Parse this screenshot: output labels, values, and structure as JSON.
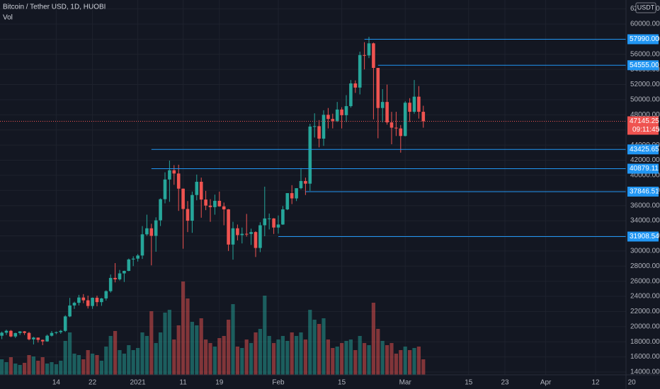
{
  "chart_data": {
    "type": "candlestick",
    "title": "Bitcoin / Tether USD, 1D, HUOBI",
    "volume_title": "Vol",
    "currency": "USDT",
    "up_color": "#26a69a",
    "down_color": "#ef5350",
    "level_color": "#2196f3",
    "grid": true,
    "categories": [
      "2020-12-02",
      "2020-12-03",
      "2020-12-04",
      "2020-12-05",
      "2020-12-06",
      "2020-12-07",
      "2020-12-08",
      "2020-12-09",
      "2020-12-10",
      "2020-12-11",
      "2020-12-12",
      "2020-12-13",
      "2020-12-14",
      "2020-12-15",
      "2020-12-16",
      "2020-12-17",
      "2020-12-18",
      "2020-12-19",
      "2020-12-20",
      "2020-12-21",
      "2020-12-22",
      "2020-12-23",
      "2020-12-24",
      "2020-12-25",
      "2020-12-26",
      "2020-12-27",
      "2020-12-28",
      "2020-12-29",
      "2020-12-30",
      "2020-12-31",
      "2021-01-01",
      "2021-01-02",
      "2021-01-03",
      "2021-01-04",
      "2021-01-05",
      "2021-01-06",
      "2021-01-07",
      "2021-01-08",
      "2021-01-09",
      "2021-01-10",
      "2021-01-11",
      "2021-01-12",
      "2021-01-13",
      "2021-01-14",
      "2021-01-15",
      "2021-01-16",
      "2021-01-17",
      "2021-01-18",
      "2021-01-19",
      "2021-01-20",
      "2021-01-21",
      "2021-01-22",
      "2021-01-23",
      "2021-01-24",
      "2021-01-25",
      "2021-01-26",
      "2021-01-27",
      "2021-01-28",
      "2021-01-29",
      "2021-01-30",
      "2021-01-31",
      "2021-02-01",
      "2021-02-02",
      "2021-02-03",
      "2021-02-04",
      "2021-02-05",
      "2021-02-06",
      "2021-02-07",
      "2021-02-08",
      "2021-02-09",
      "2021-02-10",
      "2021-02-11",
      "2021-02-12",
      "2021-02-13",
      "2021-02-14",
      "2021-02-15",
      "2021-02-16",
      "2021-02-17",
      "2021-02-18",
      "2021-02-19",
      "2021-02-20",
      "2021-02-21",
      "2021-02-22",
      "2021-02-23",
      "2021-02-24",
      "2021-02-25",
      "2021-02-26",
      "2021-02-27",
      "2021-02-28",
      "2021-03-01",
      "2021-03-02",
      "2021-03-03",
      "2021-03-04",
      "2021-03-05"
    ],
    "open": [
      18800,
      19200,
      19450,
      18700,
      19150,
      19370,
      19170,
      18320,
      18550,
      18250,
      18050,
      18800,
      19170,
      19270,
      19440,
      21350,
      22800,
      23150,
      23850,
      23480,
      22730,
      23820,
      23240,
      23730,
      24690,
      26440,
      26250,
      27040,
      27370,
      28880,
      28990,
      29400,
      32200,
      33000,
      32000,
      34050,
      36850,
      39450,
      40670,
      40240,
      38240,
      35550,
      34000,
      37400,
      39150,
      36800,
      36000,
      35800,
      36630,
      35900,
      35500,
      30850,
      33000,
      32100,
      32270,
      32250,
      32500,
      30400,
      33400,
      34300,
      34300,
      33100,
      33500,
      35500,
      37650,
      36950,
      38300,
      39250,
      38900,
      46450,
      46500,
      44850,
      48000,
      47450,
      47200,
      48700,
      47950,
      49150,
      52150,
      51600,
      55900,
      55850,
      57450,
      54200,
      48900,
      49700,
      47000,
      46300,
      46200,
      45200,
      49600,
      48400,
      50400,
      48400
    ],
    "high": [
      19350,
      19600,
      19550,
      19200,
      19400,
      19420,
      19300,
      18650,
      18560,
      18300,
      18950,
      19420,
      19350,
      19570,
      21500,
      23800,
      23300,
      24200,
      24300,
      24100,
      23850,
      24100,
      23800,
      24800,
      26900,
      28400,
      27500,
      27400,
      29000,
      29300,
      29600,
      33300,
      34800,
      33600,
      34450,
      36950,
      40400,
      41950,
      41350,
      41400,
      38260,
      36600,
      37850,
      40100,
      39700,
      37950,
      36850,
      37450,
      37850,
      36400,
      35550,
      33850,
      33500,
      33100,
      34900,
      32950,
      32600,
      33800,
      38500,
      34950,
      34350,
      34700,
      35950,
      37650,
      38700,
      38300,
      40950,
      39700,
      46800,
      48200,
      47300,
      48600,
      48900,
      48150,
      49700,
      49000,
      50600,
      52600,
      52550,
      56350,
      57600,
      58300,
      57550,
      54200,
      51400,
      52000,
      48400,
      48400,
      46650,
      49800,
      50200,
      52600,
      51800,
      49200
    ],
    "low": [
      18350,
      18900,
      18600,
      18500,
      18900,
      18900,
      18200,
      17650,
      17900,
      17550,
      18000,
      18700,
      19000,
      19050,
      19300,
      21250,
      22350,
      22800,
      23100,
      22400,
      22350,
      22700,
      22750,
      23450,
      24500,
      25850,
      26100,
      25900,
      27320,
      28000,
      28600,
      28950,
      32000,
      28100,
      29900,
      33300,
      36300,
      36500,
      38750,
      35300,
      30300,
      32500,
      32400,
      36700,
      34400,
      35400,
      33850,
      34800,
      35850,
      33400,
      30000,
      28850,
      31400,
      31000,
      31900,
      30800,
      29200,
      29850,
      31950,
      32850,
      32250,
      32300,
      33450,
      35400,
      36200,
      36600,
      38150,
      37400,
      37950,
      45000,
      43700,
      43900,
      46200,
      46200,
      47050,
      46200,
      47050,
      48950,
      50900,
      50700,
      54000,
      55500,
      47400,
      44900,
      47000,
      46700,
      44100,
      45200,
      43000,
      45150,
      47050,
      48150,
      47500,
      46300
    ],
    "close": [
      19200,
      19450,
      18700,
      19150,
      19370,
      19170,
      18320,
      18550,
      18250,
      18050,
      18800,
      19170,
      19270,
      19440,
      21350,
      22800,
      23150,
      23850,
      23480,
      22730,
      23820,
      23240,
      23730,
      24690,
      26440,
      26250,
      27040,
      27370,
      28880,
      28990,
      29400,
      32200,
      33000,
      32000,
      34050,
      36850,
      39450,
      40670,
      40240,
      38240,
      35550,
      34000,
      37400,
      39150,
      36800,
      36000,
      35800,
      36630,
      35900,
      35500,
      30850,
      33000,
      32100,
      32270,
      32250,
      32500,
      30400,
      33400,
      34300,
      34300,
      33100,
      33500,
      35500,
      37650,
      36950,
      38300,
      39250,
      38900,
      46450,
      46500,
      44850,
      48000,
      47450,
      47200,
      48700,
      47950,
      49150,
      52150,
      51600,
      55900,
      55850,
      57450,
      54200,
      48900,
      49700,
      47000,
      46300,
      46200,
      45200,
      49600,
      48400,
      50400,
      48400,
      47145.25
    ],
    "volume": [
      22000,
      18000,
      25000,
      16000,
      14000,
      17000,
      28000,
      26000,
      20000,
      25000,
      16000,
      18000,
      15000,
      20000,
      48000,
      60000,
      30000,
      28000,
      22000,
      35000,
      30000,
      28000,
      20000,
      40000,
      55000,
      62000,
      35000,
      30000,
      42000,
      35000,
      38000,
      60000,
      55000,
      90000,
      45000,
      60000,
      88000,
      92000,
      50000,
      70000,
      132000,
      108000,
      75000,
      70000,
      80000,
      50000,
      45000,
      40000,
      52000,
      55000,
      78000,
      100000,
      40000,
      38000,
      50000,
      45000,
      60000,
      65000,
      112000,
      55000,
      45000,
      50000,
      55000,
      48000,
      60000,
      55000,
      60000,
      50000,
      92000,
      78000,
      72000,
      80000,
      50000,
      38000,
      40000,
      45000,
      48000,
      50000,
      35000,
      55000,
      45000,
      42000,
      102000,
      65000,
      48000,
      42000,
      45000,
      30000,
      35000,
      40000,
      35000,
      38000,
      40000,
      22000
    ],
    "ylim": [
      13626,
      63178
    ],
    "volume_ylim": [
      0,
      150000
    ],
    "yticks": [
      {
        "value": 14000,
        "label": "14000.00"
      },
      {
        "value": 16000,
        "label": "16000.00"
      },
      {
        "value": 18000,
        "label": "18000.00"
      },
      {
        "value": 20000,
        "label": "20000.00"
      },
      {
        "value": 22000,
        "label": "22000.00"
      },
      {
        "value": 24000,
        "label": "24000.00"
      },
      {
        "value": 26000,
        "label": "26000.00"
      },
      {
        "value": 28000,
        "label": "28000.00"
      },
      {
        "value": 30000,
        "label": "30000.00"
      },
      {
        "value": 32000,
        "label": "32000.00"
      },
      {
        "value": 34000,
        "label": "34000.00"
      },
      {
        "value": 36000,
        "label": "36000.00"
      },
      {
        "value": 38000,
        "label": "38000.00"
      },
      {
        "value": 40000,
        "label": "40000.00"
      },
      {
        "value": 42000,
        "label": "42000.00"
      },
      {
        "value": 44000,
        "label": "44000.00"
      },
      {
        "value": 46000,
        "label": "46000.00"
      },
      {
        "value": 48000,
        "label": "48000.00"
      },
      {
        "value": 50000,
        "label": "50000.00"
      },
      {
        "value": 52000,
        "label": "52000.00"
      },
      {
        "value": 54000,
        "label": "54000.00"
      },
      {
        "value": 56000,
        "label": "56000.00"
      },
      {
        "value": 58000,
        "label": "58000.00"
      },
      {
        "value": 60000,
        "label": "60000.00"
      },
      {
        "value": 62000,
        "label": "62000.00"
      }
    ],
    "xticks": [
      {
        "value": "2020-12-14",
        "label": "14"
      },
      {
        "value": "2020-12-22",
        "label": "22"
      },
      {
        "value": "2021-01-01",
        "label": "2021"
      },
      {
        "value": "2021-01-11",
        "label": "11"
      },
      {
        "value": "2021-01-19",
        "label": "19"
      },
      {
        "value": "2021-02-01",
        "label": "Feb"
      },
      {
        "value": "2021-02-15",
        "label": "15"
      },
      {
        "value": "2021-03-01",
        "label": "Mar"
      },
      {
        "value": "2021-03-15",
        "label": "15"
      },
      {
        "value": "2021-03-23",
        "label": "23"
      },
      {
        "value": "2021-04-01",
        "label": "Apr"
      },
      {
        "value": "2021-04-12",
        "label": "12"
      },
      {
        "value": "2021-04-20",
        "label": "20"
      }
    ],
    "levels": [
      {
        "value": 57990,
        "label": "57990.00",
        "from": "2021-02-20"
      },
      {
        "value": 54555,
        "label": "54555.00",
        "from": "2021-02-23"
      },
      {
        "value": 43425.65,
        "label": "43425.65",
        "from": "2021-01-04"
      },
      {
        "value": 40879.11,
        "label": "40879.11",
        "from": "2021-01-04"
      },
      {
        "value": 37846.51,
        "label": "37846.51",
        "from": "2021-02-07"
      },
      {
        "value": 31908.54,
        "label": "31908.54",
        "from": "2021-02-01"
      }
    ],
    "last_price": {
      "value": 47145.25,
      "label": "47145.25",
      "countdown": "09:11:45"
    }
  }
}
